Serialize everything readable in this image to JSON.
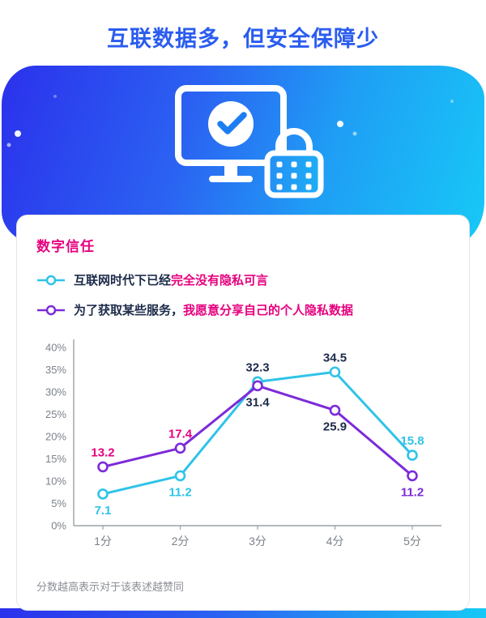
{
  "header": {
    "title": "互联数据多，但安全保障少"
  },
  "card": {
    "section_title": "数字信任",
    "note": "分数越高表示对于该表述越赞同"
  },
  "legend": {
    "items": [
      {
        "prefix": "互联网时代下已经",
        "highlight": "完全没有隐私可言"
      },
      {
        "prefix": "为了获取某些服务，",
        "highlight": "我愿意分享自己的个人隐私数据"
      }
    ]
  },
  "colors": {
    "title_blue": "#2a5cf0",
    "magenta": "#e6007e",
    "dark": "#1c2b4a",
    "cyan": "#2fc3e8",
    "purple": "#7c2bd9",
    "axis_gray": "#9aa0a6",
    "tick_gray": "#7c828a"
  },
  "chart_data": {
    "type": "line",
    "title": "数字信任",
    "categories": [
      "1分",
      "2分",
      "3分",
      "4分",
      "5分"
    ],
    "series": [
      {
        "name": "互联网时代下已经完全没有隐私可言",
        "color": "#2fc3e8",
        "values": [
          7.1,
          11.2,
          32.3,
          34.5,
          15.8
        ],
        "label_positions": [
          "below",
          "below",
          "above",
          "above",
          "above"
        ],
        "label_colors": [
          "#2fc3e8",
          "#2fc3e8",
          "#1c2b4a",
          "#1c2b4a",
          "#2fc3e8"
        ]
      },
      {
        "name": "为了获取某些服务，我愿意分享自己的个人隐私数据",
        "color": "#7c2bd9",
        "values": [
          13.2,
          17.4,
          31.4,
          25.9,
          11.2
        ],
        "label_positions": [
          "above",
          "above",
          "below",
          "below",
          "below"
        ],
        "label_colors": [
          "#e6007e",
          "#e6007e",
          "#1c2b4a",
          "#1c2b4a",
          "#7c2bd9"
        ]
      }
    ],
    "xlabel": "",
    "ylabel": "",
    "ylim": [
      0,
      40
    ],
    "y_ticks": [
      "0%",
      "5%",
      "10%",
      "15%",
      "20%",
      "25%",
      "30%",
      "35%",
      "40%"
    ],
    "grid": false,
    "legend_position": "top",
    "footnote": "分数越高表示对于该表述越赞同"
  }
}
